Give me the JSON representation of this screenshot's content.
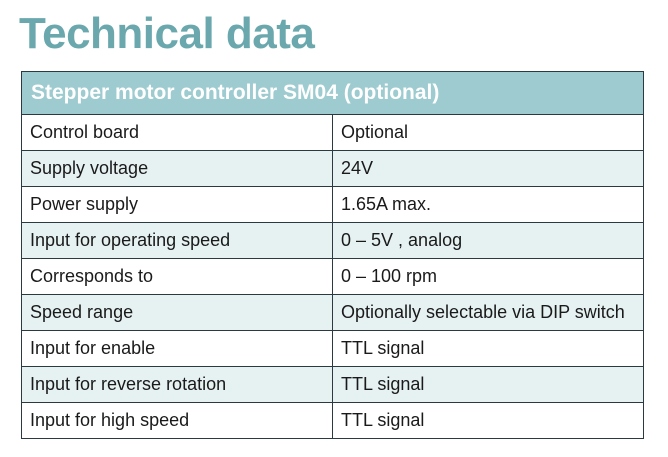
{
  "title": "Technical data",
  "table": {
    "header": "Stepper motor controller SM04  (optional)",
    "rows": [
      {
        "label": "Control board",
        "value": "Optional"
      },
      {
        "label": "Supply voltage",
        "value": "24V"
      },
      {
        "label": "Power supply",
        "value": "1.65A max."
      },
      {
        "label": "Input for operating speed",
        "value": "0 – 5V , analog"
      },
      {
        "label": "Corresponds to",
        "value": "0 – 100 rpm"
      },
      {
        "label": "Speed range",
        "value": "Optionally selectable via DIP switch"
      },
      {
        "label": "Input for enable",
        "value": "TTL signal"
      },
      {
        "label": "Input for reverse rotation",
        "value": "TTL signal"
      },
      {
        "label": "Input for high speed",
        "value": "TTL signal"
      }
    ]
  },
  "colors": {
    "title": "#6aa8ae",
    "header_background": "#9dcbd0",
    "header_text": "#ffffff",
    "stripe": "#e6f1f2",
    "border": "#2b3a40"
  }
}
